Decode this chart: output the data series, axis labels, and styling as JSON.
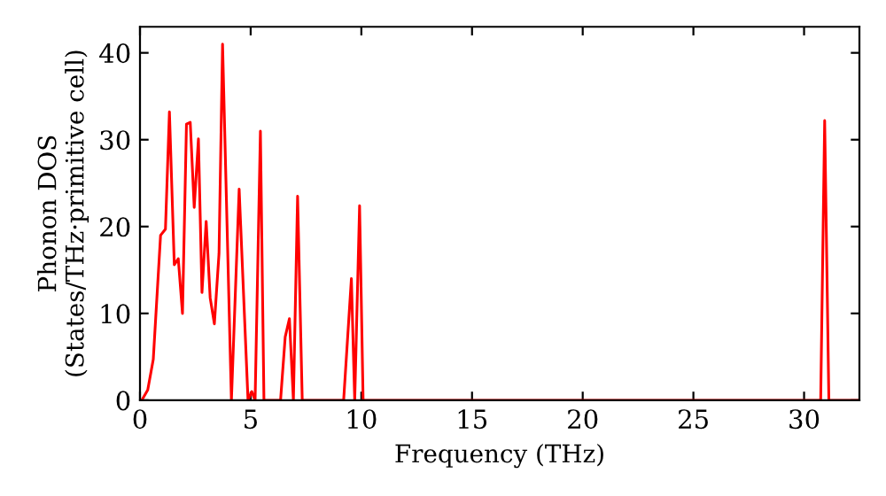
{
  "chart_data": {
    "type": "line",
    "xlabel": "Frequency (THz)",
    "ylabel": "Phonon DOS\n(States/THz·primitive cell)",
    "xlim": [
      0,
      32.5
    ],
    "ylim": [
      0,
      43
    ],
    "xticks": [
      0,
      5,
      10,
      15,
      20,
      25,
      30
    ],
    "yticks": [
      0,
      10,
      20,
      30,
      40
    ],
    "grid": false,
    "legend": false,
    "marker": "none",
    "line_style": "solid",
    "series": [
      {
        "color": "#ff0000",
        "x": [
          0.08,
          0.35,
          0.6,
          0.93,
          1.15,
          1.33,
          1.55,
          1.73,
          1.92,
          2.1,
          2.27,
          2.45,
          2.64,
          2.8,
          2.99,
          3.17,
          3.36,
          3.57,
          3.73,
          4.13,
          4.48,
          4.88,
          5.05,
          5.2,
          5.44,
          5.6,
          6.35,
          6.56,
          6.75,
          6.93,
          7.12,
          7.33,
          9.2,
          9.55,
          9.7,
          9.92,
          10.08,
          30.75,
          30.93,
          31.12,
          32.5
        ],
        "values": [
          0,
          1.2,
          4.7,
          19,
          19.7,
          33.2,
          15.6,
          16.3,
          10,
          31.8,
          32,
          22.2,
          30.1,
          12.4,
          20.6,
          11.8,
          8.8,
          16.9,
          41,
          0,
          24.3,
          0,
          1,
          0,
          31,
          0,
          0,
          7.3,
          9.4,
          0,
          23.5,
          0,
          0,
          14,
          0,
          22.4,
          0,
          0,
          32.2,
          0,
          0
        ]
      }
    ]
  }
}
